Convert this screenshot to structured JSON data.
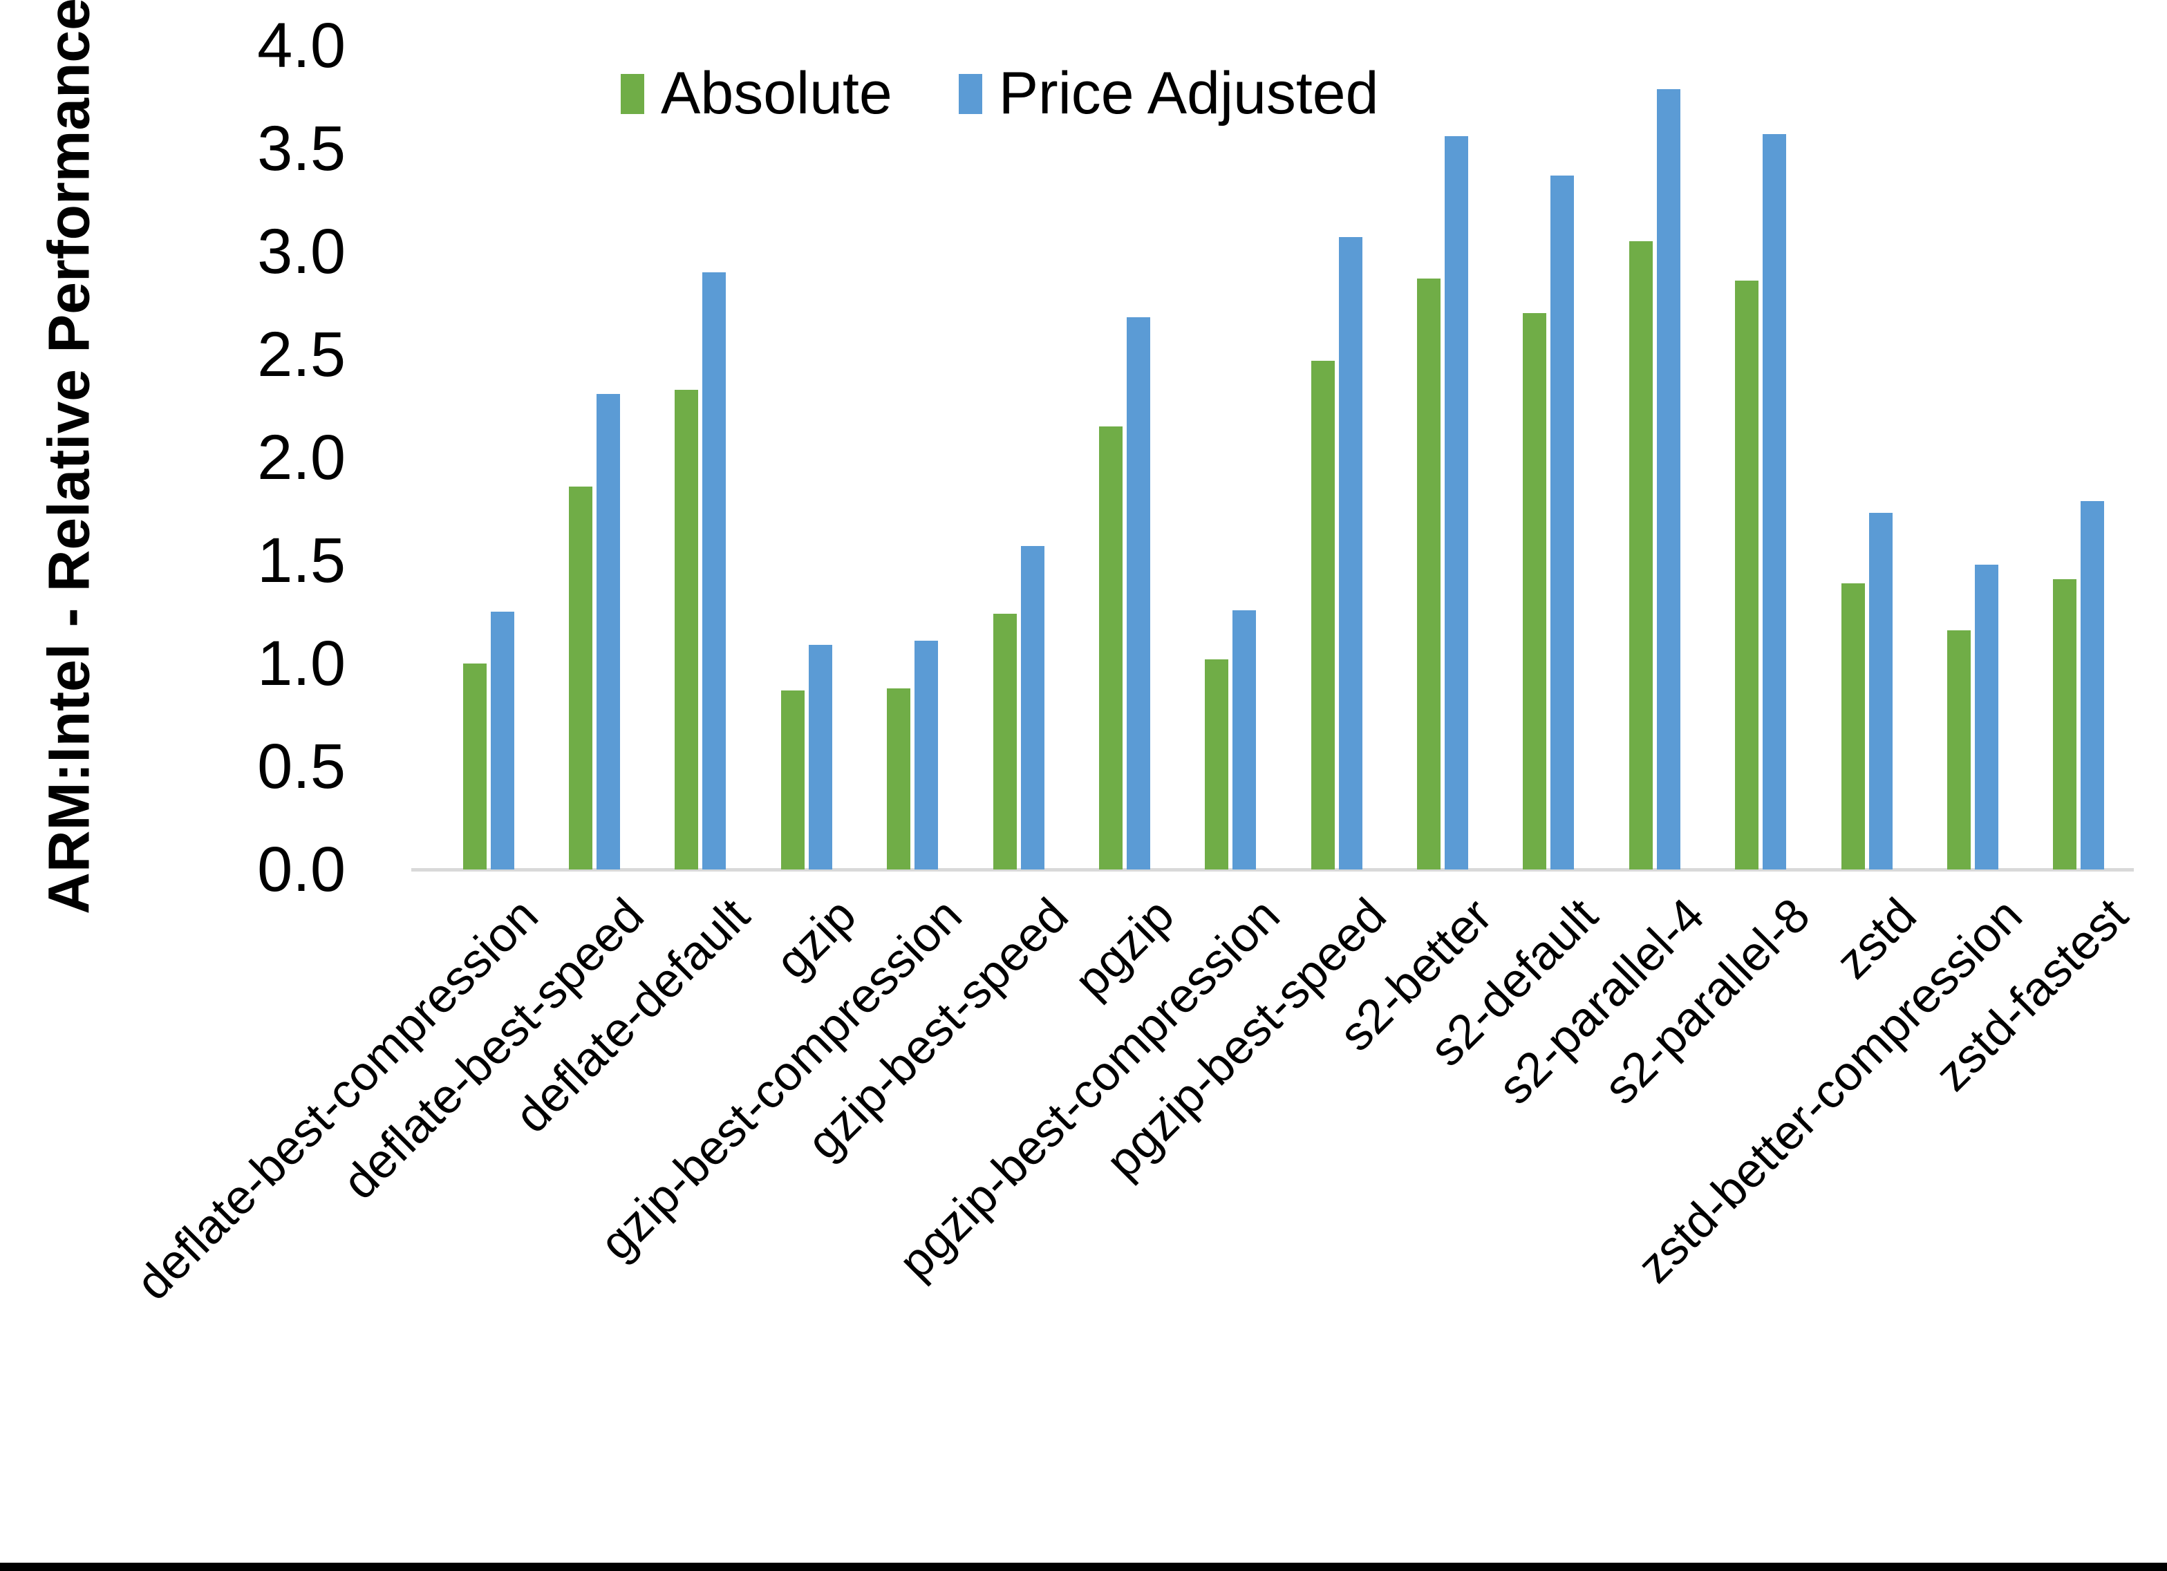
{
  "chart_data": {
    "type": "bar",
    "title": "",
    "xlabel": "",
    "ylabel": "ARM:Intel - Relative Performance",
    "ylim": [
      0.0,
      4.0
    ],
    "ytick_step": 0.5,
    "ytick_labels": [
      "4.0",
      "3.5",
      "3.0",
      "2.5",
      "2.0",
      "1.5",
      "1.0",
      "0.5",
      "0.0"
    ],
    "grid": false,
    "legend_position": "top-center",
    "axis_line_color": "#d9d9d9",
    "categories": [
      "deflate-best-compression",
      "deflate-best-speed",
      "deflate-default",
      "gzip",
      "gzip-best-compression",
      "gzip-best-speed",
      "pgzip",
      "pgzip-best-compression",
      "pgzip-best-speed",
      "s2-better",
      "s2-default",
      "s2-parallel-4",
      "s2-parallel-8",
      "zstd",
      "zstd-better-compression",
      "zstd-fastest"
    ],
    "series": [
      {
        "name": "Absolute",
        "color": "#70AD47",
        "values": [
          1.0,
          1.86,
          2.33,
          0.87,
          0.88,
          1.24,
          2.15,
          1.02,
          2.47,
          2.87,
          2.7,
          3.05,
          2.86,
          1.39,
          1.16,
          1.41
        ]
      },
      {
        "name": "Price Adjusted",
        "color": "#5B9BD5",
        "values": [
          1.25,
          2.31,
          2.9,
          1.09,
          1.11,
          1.57,
          2.68,
          1.26,
          3.07,
          3.56,
          3.37,
          3.79,
          3.57,
          1.73,
          1.48,
          1.79
        ]
      }
    ]
  }
}
